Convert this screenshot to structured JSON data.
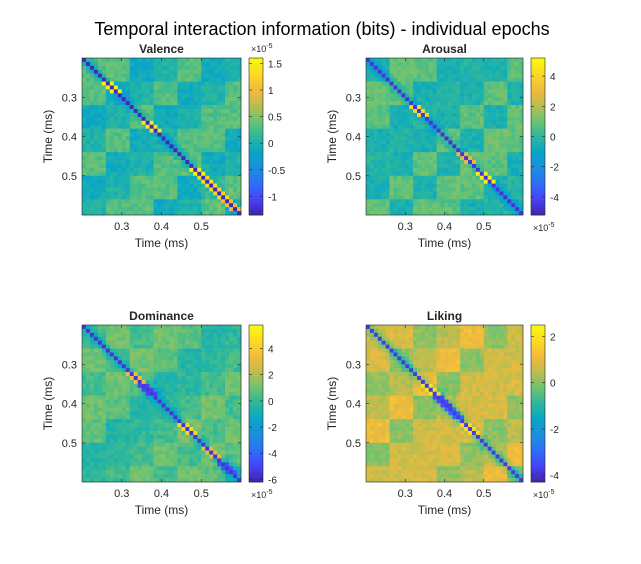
{
  "figure": {
    "title": "Temporal interaction information (bits) - individual epochs"
  },
  "colormap": [
    "#3e26a8",
    "#4743f8",
    "#2d6ff7",
    "#1b8fde",
    "#08a6c6",
    "#2bb79d",
    "#6fc370",
    "#bcbd4e",
    "#f4ba3c",
    "#fada24",
    "#f9fb0e"
  ],
  "chart_data": [
    {
      "type": "heatmap",
      "title": "Valence",
      "xlabel": "Time (ms)",
      "ylabel": "Time (ms)",
      "xlim": [
        0.2,
        0.6
      ],
      "ylim": [
        0.2,
        0.6
      ],
      "x_ticks": [
        0.3,
        0.4,
        0.5
      ],
      "x_tick_labels": [
        "0.3",
        "0.4",
        "0.5"
      ],
      "y_ticks": [
        0.3,
        0.4,
        0.5
      ],
      "y_tick_labels": [
        "0.3",
        "0.4",
        "0.5"
      ],
      "grid_size": 40,
      "clim": [
        -1.35,
        1.6
      ],
      "colorbar_ticks": [
        1.5,
        1,
        0.5,
        0,
        -0.5,
        -1
      ],
      "colorbar_tick_labels": [
        "1.5",
        "1",
        "0.5",
        "0",
        "-0.5",
        "-1"
      ],
      "exponent_label": "×10",
      "exponent": "-5",
      "exponent_position": "top",
      "diagonal_value": -1.3,
      "background_value": 0.1,
      "hotspots": [
        {
          "t": 0.27,
          "value": 1.5
        },
        {
          "t": 0.37,
          "value": 1.4
        },
        {
          "t": 0.5,
          "value": 1.5
        },
        {
          "t": 0.52,
          "value": 1.3
        },
        {
          "t": 0.55,
          "value": 1.2
        },
        {
          "t": 0.58,
          "value": 1.0
        }
      ]
    },
    {
      "type": "heatmap",
      "title": "Arousal",
      "xlabel": "Time (ms)",
      "ylabel": "Time (ms)",
      "xlim": [
        0.2,
        0.6
      ],
      "ylim": [
        0.2,
        0.6
      ],
      "x_ticks": [
        0.3,
        0.4,
        0.5
      ],
      "x_tick_labels": [
        "0.3",
        "0.4",
        "0.5"
      ],
      "y_ticks": [
        0.3,
        0.4,
        0.5
      ],
      "y_tick_labels": [
        "0.3",
        "0.4",
        "0.5"
      ],
      "grid_size": 40,
      "clim": [
        -5.2,
        5.2
      ],
      "colorbar_ticks": [
        4,
        2,
        0,
        -2,
        -4
      ],
      "colorbar_tick_labels": [
        "4",
        "2",
        "0",
        "-2",
        "-4"
      ],
      "exponent_label": "×10",
      "exponent": "-5",
      "exponent_position": "bottom",
      "diagonal_value": -4.6,
      "background_value": 0.3,
      "hotspots": [
        {
          "t": 0.33,
          "value": 4.0
        },
        {
          "t": 0.46,
          "value": 3.0
        },
        {
          "t": 0.51,
          "value": 4.8
        }
      ]
    },
    {
      "type": "heatmap",
      "title": "Dominance",
      "xlabel": "Time (ms)",
      "ylabel": "Time (ms)",
      "xlim": [
        0.2,
        0.6
      ],
      "ylim": [
        0.2,
        0.6
      ],
      "x_ticks": [
        0.3,
        0.4,
        0.5
      ],
      "x_tick_labels": [
        "0.3",
        "0.4",
        "0.5"
      ],
      "y_ticks": [
        0.3,
        0.4,
        0.5
      ],
      "y_tick_labels": [
        "0.3",
        "0.4",
        "0.5"
      ],
      "grid_size": 40,
      "clim": [
        -6.2,
        5.8
      ],
      "colorbar_ticks": [
        4,
        2,
        0,
        -2,
        -4,
        -6
      ],
      "colorbar_tick_labels": [
        "4",
        "2",
        "0",
        "-2",
        "-4",
        "-6"
      ],
      "exponent_label": "×10",
      "exponent": "-5",
      "exponent_position": "bottom",
      "diagonal_value": -5.5,
      "background_value": 0.5,
      "hotspots": [
        {
          "t": 0.33,
          "value": 3.5
        },
        {
          "t": 0.36,
          "value": -5.0
        },
        {
          "t": 0.47,
          "value": 4.5
        },
        {
          "t": 0.53,
          "value": 3.0
        },
        {
          "t": 0.57,
          "value": -4.5
        }
      ]
    },
    {
      "type": "heatmap",
      "title": "Liking",
      "xlabel": "Time (ms)",
      "ylabel": "Time (ms)",
      "xlim": [
        0.2,
        0.6
      ],
      "ylim": [
        0.2,
        0.6
      ],
      "x_ticks": [
        0.3,
        0.4,
        0.5
      ],
      "x_tick_labels": [
        "0.3",
        "0.4",
        "0.5"
      ],
      "y_ticks": [
        0.3,
        0.4,
        0.5
      ],
      "y_tick_labels": [
        "0.3",
        "0.4",
        "0.5"
      ],
      "grid_size": 40,
      "clim": [
        -4.3,
        2.5
      ],
      "colorbar_ticks": [
        2,
        0,
        -2,
        -4
      ],
      "colorbar_tick_labels": [
        "2",
        "0",
        "-2",
        "-4"
      ],
      "exponent_label": "×10",
      "exponent": "-5",
      "exponent_position": "bottom",
      "diagonal_value": -3.8,
      "background_value": 0.6,
      "hotspots": [
        {
          "t": 0.36,
          "value": 2.0
        },
        {
          "t": 0.39,
          "value": -3.5
        },
        {
          "t": 0.43,
          "value": -3.0
        },
        {
          "t": 0.47,
          "value": 1.8
        }
      ]
    }
  ]
}
